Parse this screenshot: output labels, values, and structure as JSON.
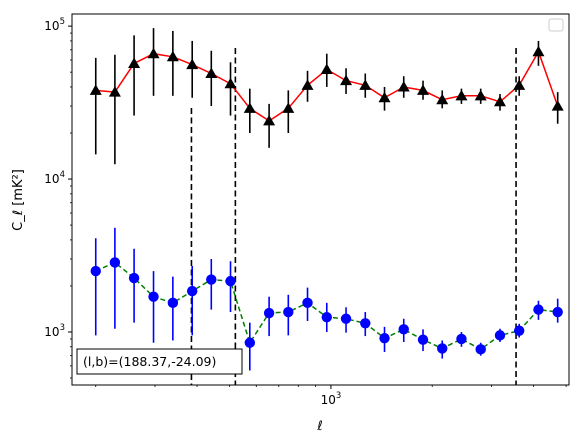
{
  "chart_data": {
    "type": "scatter",
    "title": "",
    "xlabel": "ℓ",
    "ylabel": "C_ℓ  [mK²]",
    "xscale": "log",
    "yscale": "log",
    "xlim": [
      170,
      5100
    ],
    "ylim": [
      450,
      120000
    ],
    "x_ticks": [
      {
        "value": 1000,
        "base": "10",
        "exp": "3"
      }
    ],
    "y_ticks": [
      {
        "value": 1000,
        "base": "10",
        "exp": "3"
      },
      {
        "value": 10000,
        "base": "10",
        "exp": "4"
      },
      {
        "value": 100000,
        "base": "10",
        "exp": "5"
      }
    ],
    "legend": {
      "placement": "upper right",
      "entries": []
    },
    "annotation": "(l,b)=(188.37,-24.09)",
    "vlines": {
      "x": [
        385,
        520,
        3550
      ],
      "style": "dashed",
      "color": "#000000"
    },
    "series": [
      {
        "marker": "triangle",
        "color": "#000000",
        "line_color": "#ff0000",
        "line_style": "solid",
        "x": [
          200,
          228,
          260,
          297,
          339,
          387,
          441,
          503,
          574,
          655,
          747,
          852,
          972,
          1109,
          1265,
          1443,
          1646,
          1878,
          2142,
          2443,
          2787,
          3180,
          3627,
          4138,
          4720
        ],
        "y": [
          38000,
          37000,
          57000,
          66000,
          63000,
          56000,
          49000,
          42000,
          29000,
          24000,
          29000,
          41000,
          52000,
          44000,
          41000,
          34000,
          40000,
          38000,
          33000,
          35000,
          35000,
          32000,
          41000,
          68000,
          30000
        ],
        "y_low": [
          14500,
          12500,
          26000,
          35000,
          35000,
          34000,
          30000,
          26000,
          20000,
          16000,
          20000,
          32000,
          40000,
          36000,
          34000,
          28000,
          34000,
          33000,
          29000,
          31000,
          31000,
          28000,
          35000,
          55000,
          23000
        ],
        "y_high": [
          62000,
          65000,
          87000,
          97000,
          93000,
          80000,
          69000,
          58000,
          39000,
          31000,
          38000,
          51000,
          66000,
          53000,
          49000,
          40000,
          47000,
          44000,
          38000,
          39000,
          39000,
          36000,
          47000,
          80000,
          37000
        ]
      },
      {
        "marker": "circle",
        "color": "#0000ff",
        "line_color": "#008000",
        "line_style": "dashed",
        "x": [
          200,
          228,
          260,
          297,
          339,
          387,
          441,
          503,
          574,
          655,
          747,
          852,
          972,
          1109,
          1265,
          1443,
          1646,
          1878,
          2142,
          2443,
          2787,
          3180,
          3627,
          4138,
          4720
        ],
        "y": [
          2500,
          2850,
          2250,
          1700,
          1550,
          1850,
          2200,
          2150,
          850,
          1330,
          1350,
          1550,
          1250,
          1220,
          1140,
          910,
          1040,
          890,
          780,
          900,
          770,
          950,
          1020,
          1400,
          1350
        ],
        "y_low": [
          950,
          1050,
          1150,
          850,
          880,
          950,
          1400,
          1350,
          560,
          940,
          950,
          1180,
          1000,
          990,
          940,
          740,
          860,
          750,
          670,
          800,
          700,
          860,
          920,
          1200,
          1150
        ],
        "y_high": [
          4100,
          4800,
          3500,
          2500,
          2300,
          2700,
          3000,
          2900,
          1150,
          1700,
          1750,
          1950,
          1550,
          1450,
          1350,
          1080,
          1220,
          1040,
          880,
          1000,
          850,
          1050,
          1130,
          1600,
          1650
        ]
      }
    ]
  }
}
